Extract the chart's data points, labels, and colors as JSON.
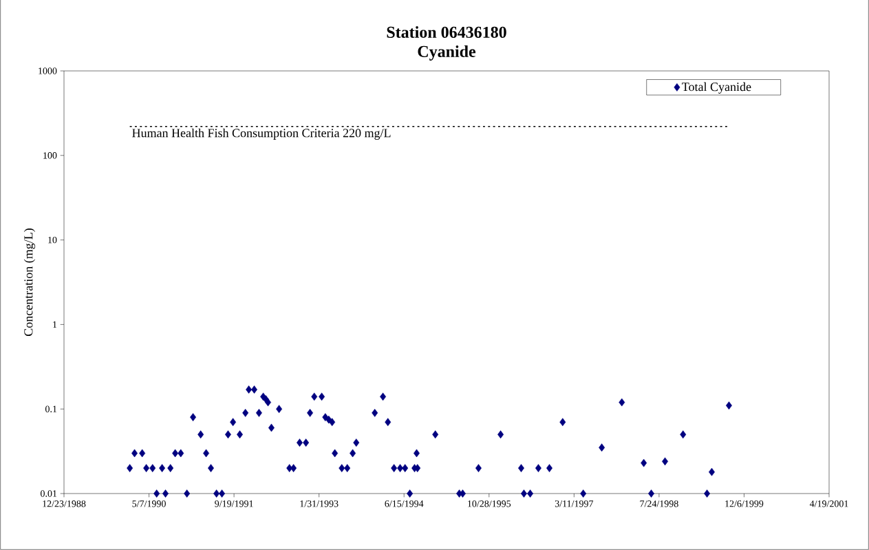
{
  "chart_data": {
    "type": "scatter",
    "title": "Station 06436180",
    "subtitle": "Cyanide",
    "ylabel": "Concentration (mg/L)",
    "log": "y",
    "marker": "diamond",
    "legend": "top right",
    "grid": false,
    "xlim": [
      "1988-12-23",
      "2001-04-19"
    ],
    "xticks": [
      {
        "value": "1988-12-23",
        "label": "12/23/1988"
      },
      {
        "value": "1990-05-07",
        "label": "5/7/1990"
      },
      {
        "value": "1991-09-19",
        "label": "9/19/1991"
      },
      {
        "value": "1993-01-31",
        "label": "1/31/1993"
      },
      {
        "value": "1994-06-15",
        "label": "6/15/1994"
      },
      {
        "value": "1995-10-28",
        "label": "10/28/1995"
      },
      {
        "value": "1997-03-11",
        "label": "3/11/1997"
      },
      {
        "value": "1998-07-24",
        "label": "7/24/1998"
      },
      {
        "value": "1999-12-06",
        "label": "12/6/1999"
      },
      {
        "value": "2001-04-19",
        "label": "4/19/2001"
      }
    ],
    "ylim": [
      0.01,
      1000
    ],
    "yticks": [
      0.01,
      0.1,
      1,
      10,
      100,
      1000
    ],
    "ref_lines": [
      {
        "axis": "y",
        "value": 220,
        "label": "Human Health Fish Consumption Criteria 220 mg/L",
        "line_style": "dotted",
        "color": "#000000"
      }
    ],
    "series": [
      {
        "name": "Total Cyanide",
        "color": "#000080",
        "x": [
          "1990-01-14",
          "1990-02-11",
          "1990-03-28",
          "1990-04-21",
          "1990-05-28",
          "1990-06-21",
          "1990-07-23",
          "1990-08-12",
          "1990-09-10",
          "1990-10-08",
          "1990-11-10",
          "1990-12-16",
          "1991-01-21",
          "1991-03-07",
          "1991-04-08",
          "1991-05-06",
          "1991-06-08",
          "1991-07-10",
          "1991-08-15",
          "1991-09-13",
          "1991-10-23",
          "1991-11-25",
          "1991-12-15",
          "1992-01-16",
          "1992-02-13",
          "1992-03-09",
          "1992-03-25",
          "1992-04-06",
          "1992-04-26",
          "1992-06-10",
          "1992-08-10",
          "1992-09-03",
          "1992-10-09",
          "1992-11-15",
          "1992-12-09",
          "1993-01-03",
          "1993-02-16",
          "1993-03-09",
          "1993-03-29",
          "1993-04-18",
          "1993-05-04",
          "1993-06-14",
          "1993-07-16",
          "1993-08-17",
          "1993-09-07",
          "1993-12-25",
          "1994-02-11",
          "1994-03-12",
          "1994-04-17",
          "1994-05-23",
          "1994-06-21",
          "1994-07-19",
          "1994-08-16",
          "1994-08-28",
          "1994-09-02",
          "1994-12-16",
          "1995-05-06",
          "1995-05-26",
          "1995-08-27",
          "1996-01-04",
          "1996-05-04",
          "1996-05-20",
          "1996-06-26",
          "1996-08-13",
          "1996-10-17",
          "1997-01-03",
          "1997-05-04",
          "1997-08-21",
          "1997-12-17",
          "1998-04-25",
          "1998-06-08",
          "1998-08-28",
          "1998-12-12",
          "1999-05-02",
          "1999-05-30",
          "1999-09-08"
        ],
        "values": [
          0.02,
          0.03,
          0.03,
          0.02,
          0.02,
          0.01,
          0.02,
          0.01,
          0.02,
          0.03,
          0.03,
          0.01,
          0.08,
          0.05,
          0.03,
          0.02,
          0.01,
          0.01,
          0.05,
          0.07,
          0.05,
          0.09,
          0.17,
          0.17,
          0.09,
          0.14,
          0.13,
          0.12,
          0.06,
          0.1,
          0.02,
          0.02,
          0.04,
          0.04,
          0.09,
          0.14,
          0.14,
          0.08,
          0.075,
          0.07,
          0.03,
          0.02,
          0.02,
          0.03,
          0.04,
          0.09,
          0.14,
          0.07,
          0.02,
          0.02,
          0.02,
          0.01,
          0.02,
          0.03,
          0.02,
          0.05,
          0.01,
          0.01,
          0.02,
          0.05,
          0.02,
          0.01,
          0.01,
          0.02,
          0.02,
          0.07,
          0.01,
          0.035,
          0.12,
          0.023,
          0.01,
          0.024,
          0.05,
          0.01,
          0.018,
          0.11
        ]
      }
    ]
  }
}
